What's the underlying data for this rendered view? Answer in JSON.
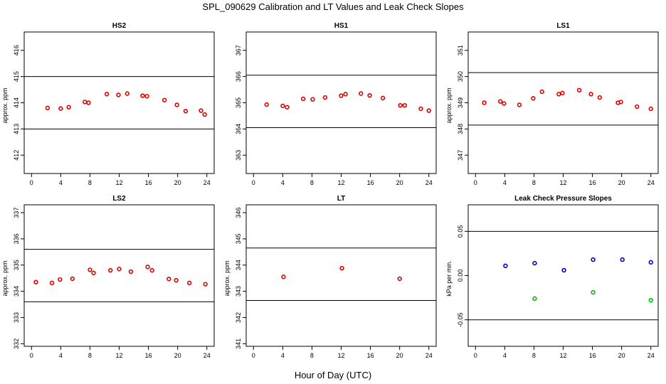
{
  "figure": {
    "title": "SPL_090629  Calibration and LT Values and Leak Check Slopes",
    "xlabel": "Hour of Day (UTC)"
  },
  "colors": {
    "calibration_points": "#dd0000",
    "leak_series_1": "#0000cc",
    "leak_series_2": "#00bb00",
    "axes": "#000000"
  },
  "chart_data": [
    {
      "type": "scatter",
      "title": "HS2",
      "ylabel": "approx. ppm",
      "xlim": [
        -1,
        25
      ],
      "ylim": [
        411.3,
        416.7
      ],
      "xticks": [
        0,
        4,
        8,
        12,
        16,
        20,
        24
      ],
      "yticks": [
        412,
        413,
        414,
        415,
        416
      ],
      "hlines": [
        415,
        413
      ],
      "series": [
        {
          "color": "#dd0000",
          "x": [
            2.2,
            4.0,
            5.1,
            7.3,
            7.8,
            10.3,
            11.9,
            13.1,
            15.2,
            15.8,
            18.2,
            19.9,
            21.1,
            23.2,
            23.7
          ],
          "y": [
            413.8,
            413.78,
            413.83,
            414.03,
            414.0,
            414.33,
            414.3,
            414.35,
            414.27,
            414.25,
            414.1,
            413.92,
            413.68,
            413.7,
            413.55
          ]
        }
      ]
    },
    {
      "type": "scatter",
      "title": "HS1",
      "ylabel": "",
      "xlim": [
        -1,
        25
      ],
      "ylim": [
        362.3,
        367.7
      ],
      "xticks": [
        0,
        4,
        8,
        12,
        16,
        20,
        24
      ],
      "yticks": [
        363,
        364,
        365,
        366,
        367
      ],
      "hlines": [
        366.05,
        364.05
      ],
      "series": [
        {
          "color": "#dd0000",
          "x": [
            1.8,
            4.0,
            4.6,
            6.8,
            8.1,
            9.8,
            12.0,
            12.6,
            14.7,
            15.9,
            17.7,
            20.1,
            20.7,
            22.9,
            24.0
          ],
          "y": [
            364.93,
            364.88,
            364.83,
            365.15,
            365.13,
            365.2,
            365.27,
            365.33,
            365.35,
            365.28,
            365.18,
            364.9,
            364.9,
            364.77,
            364.7
          ]
        }
      ]
    },
    {
      "type": "scatter",
      "title": "LS1",
      "ylabel": "approx. ppm",
      "xlim": [
        -1,
        25
      ],
      "ylim": [
        346.3,
        351.7
      ],
      "xticks": [
        0,
        4,
        8,
        12,
        16,
        20,
        24
      ],
      "yticks": [
        347,
        348,
        349,
        350,
        351
      ],
      "hlines": [
        350.15,
        348.15
      ],
      "series": [
        {
          "color": "#dd0000",
          "x": [
            1.2,
            3.4,
            3.9,
            6.0,
            7.9,
            9.1,
            11.4,
            11.9,
            14.2,
            15.8,
            17.0,
            19.5,
            19.9,
            22.1,
            24.0
          ],
          "y": [
            349.0,
            349.05,
            348.97,
            348.92,
            349.17,
            349.42,
            349.33,
            349.37,
            349.48,
            349.33,
            349.2,
            349.0,
            349.03,
            348.85,
            348.77
          ]
        }
      ]
    },
    {
      "type": "scatter",
      "title": "LS2",
      "ylabel": "approx. ppm",
      "xlim": [
        -1,
        25
      ],
      "ylim": [
        331.9,
        337.3
      ],
      "xticks": [
        0,
        4,
        8,
        12,
        16,
        20,
        24
      ],
      "yticks": [
        332,
        333,
        334,
        335,
        336,
        337
      ],
      "hlines": [
        335.6,
        333.6
      ],
      "series": [
        {
          "color": "#dd0000",
          "x": [
            0.6,
            2.8,
            3.9,
            5.6,
            8.0,
            8.5,
            10.8,
            12.0,
            13.6,
            15.9,
            16.5,
            18.8,
            19.8,
            21.6,
            23.8
          ],
          "y": [
            334.35,
            334.32,
            334.45,
            334.48,
            334.82,
            334.7,
            334.8,
            334.85,
            334.75,
            334.93,
            334.8,
            334.47,
            334.42,
            334.32,
            334.27
          ]
        }
      ]
    },
    {
      "type": "scatter",
      "title": "LT",
      "ylabel": "approx. ppm",
      "xlim": [
        -1,
        25
      ],
      "ylim": [
        340.9,
        346.3
      ],
      "xticks": [
        0,
        4,
        8,
        12,
        16,
        20,
        24
      ],
      "yticks": [
        341,
        342,
        343,
        344,
        345,
        346
      ],
      "hlines": [
        344.65,
        342.65
      ],
      "series": [
        {
          "color": "#dd0000",
          "x": [
            4.1,
            12.1,
            20.0
          ],
          "y": [
            343.55,
            343.88,
            343.48
          ]
        }
      ]
    },
    {
      "type": "scatter",
      "title": "Leak Check Pressure Slopes",
      "ylabel": "kPa per min.",
      "xlim": [
        -1,
        25
      ],
      "ylim": [
        -0.08,
        0.08
      ],
      "xticks": [
        0,
        4,
        8,
        12,
        16,
        20,
        24
      ],
      "yticks": [
        -0.05,
        0.0,
        0.05
      ],
      "ytick_labels": [
        "-0.05",
        "0.00",
        "0.05"
      ],
      "hlines": [
        0.05,
        -0.05
      ],
      "series": [
        {
          "color": "#0000cc",
          "x": [
            4.1,
            8.1,
            12.1,
            16.1,
            20.1,
            24.0
          ],
          "y": [
            0.011,
            0.014,
            0.006,
            0.018,
            0.018,
            0.015
          ]
        },
        {
          "color": "#00bb00",
          "x": [
            8.1,
            16.1,
            24.0
          ],
          "y": [
            -0.026,
            -0.019,
            -0.028
          ]
        }
      ]
    }
  ]
}
